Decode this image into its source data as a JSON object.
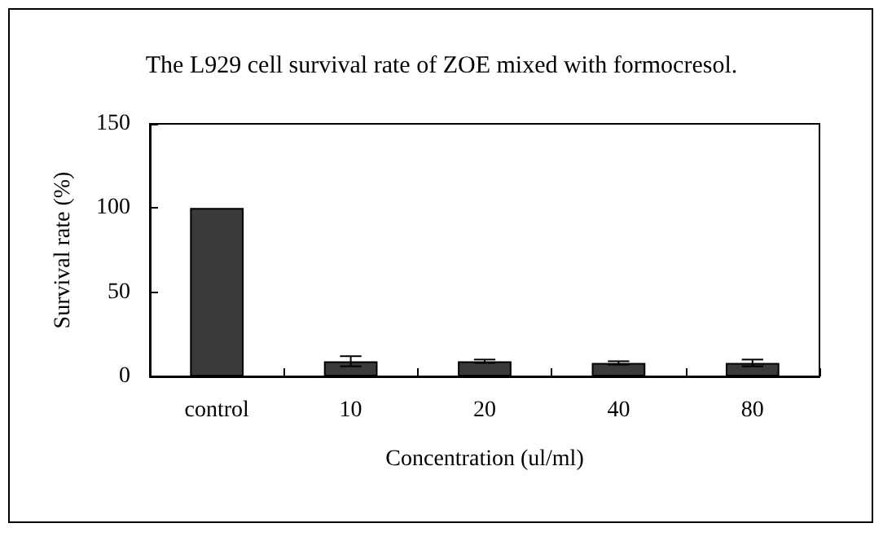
{
  "chart_data": {
    "type": "bar",
    "title": "The L929 cell survival rate of ZOE mixed with formocresol.",
    "xlabel": "Concentration (ul/ml)",
    "ylabel": "Survival rate (%)",
    "categories": [
      "control",
      "10",
      "20",
      "40",
      "80"
    ],
    "series": [
      {
        "color": "#3a3a3a",
        "values": [
          100,
          9,
          9,
          8,
          8
        ],
        "errors": [
          null,
          3,
          1,
          1,
          2
        ]
      }
    ],
    "ylim": [
      0,
      150
    ],
    "yticks": [
      0,
      50,
      100,
      150
    ],
    "grid": false
  }
}
